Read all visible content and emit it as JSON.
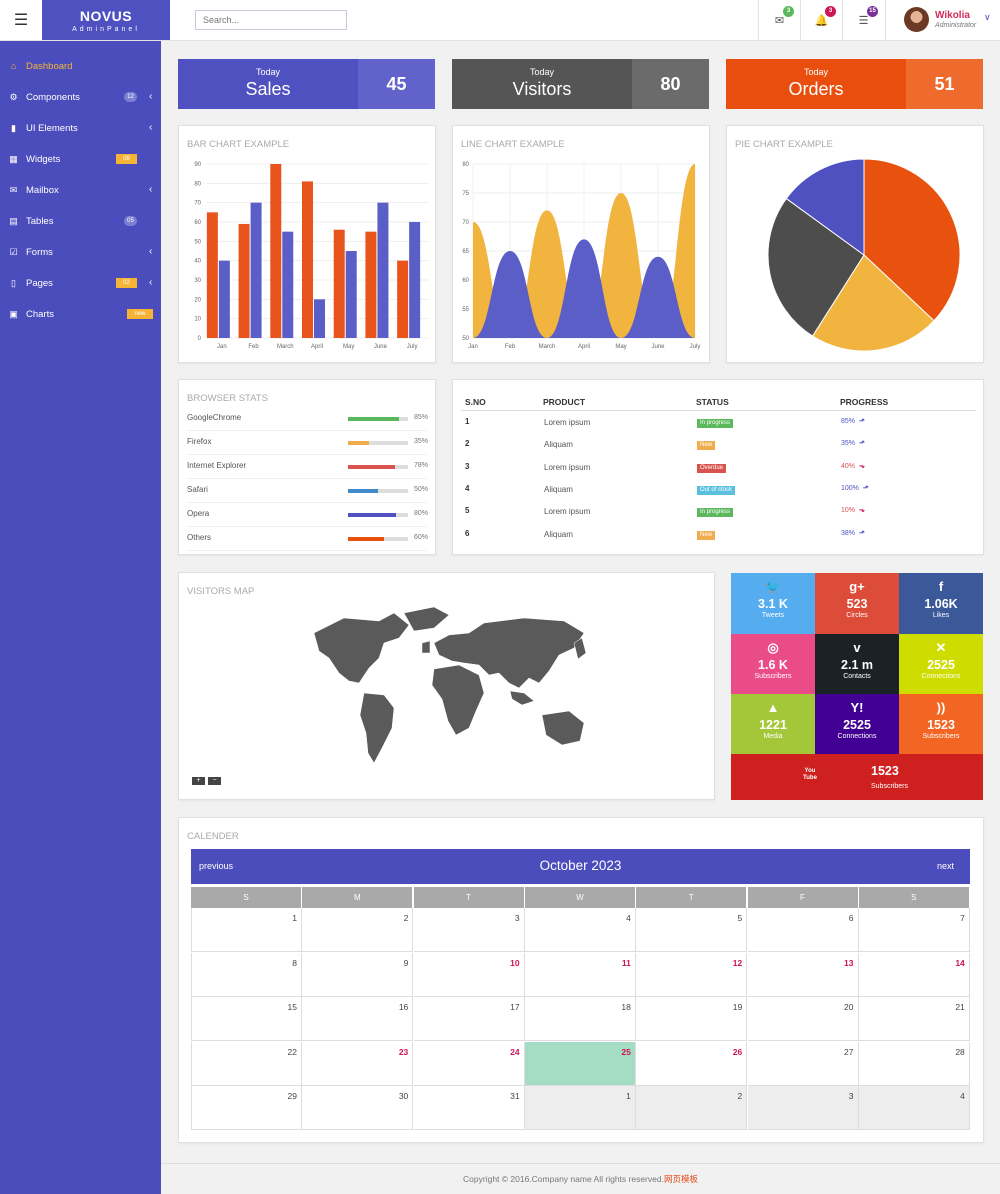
{
  "app": {
    "brand": "NOVUS",
    "brand_sub": "AdminPanel"
  },
  "header": {
    "search_placeholder": "Search...",
    "mail_badge": "3",
    "bell_badge": "3",
    "tasks_badge": "15",
    "user_name": "Wikolia",
    "user_role": "Administrator"
  },
  "sidebar": {
    "items": [
      {
        "label": "Dashboard",
        "icon": "home-icon",
        "active": true
      },
      {
        "label": "Components",
        "icon": "cogs-icon",
        "badge": "12",
        "arrow": true
      },
      {
        "label": "UI Elements",
        "icon": "book-icon",
        "arrow": true
      },
      {
        "label": "Widgets",
        "icon": "grid-icon",
        "badge": "08"
      },
      {
        "label": "Mailbox",
        "icon": "envelope-icon",
        "arrow": true
      },
      {
        "label": "Tables",
        "icon": "table-icon",
        "badge": "05"
      },
      {
        "label": "Forms",
        "icon": "check-square-icon",
        "arrow": true
      },
      {
        "label": "Pages",
        "icon": "file-icon",
        "badge": "02",
        "arrow": true
      },
      {
        "label": "Charts",
        "icon": "picture-icon",
        "badge": "new"
      }
    ]
  },
  "stats": [
    {
      "small": "Today",
      "big": "Sales",
      "value": "45",
      "color": "#4f51c0",
      "color2": "#6163cb"
    },
    {
      "small": "Today",
      "big": "Visitors",
      "value": "80",
      "color": "#555555",
      "color2": "#6b6b6b"
    },
    {
      "small": "Today",
      "big": "Orders",
      "value": "51",
      "color": "#e94e0f",
      "color2": "#ef6a2d"
    }
  ],
  "bar_title": "BAR CHART EXAMPLE",
  "line_title": "LINE CHART EXAMPLE",
  "pie_title": "PIE CHART EXAMPLE",
  "chart_data": [
    {
      "type": "bar",
      "categories": [
        "Jan",
        "Feb",
        "March",
        "April",
        "May",
        "June",
        "July"
      ],
      "series": [
        {
          "values": [
            65,
            59,
            90,
            81,
            56,
            55,
            40
          ],
          "color": "#e9531c"
        },
        {
          "values": [
            40,
            70,
            55,
            20,
            45,
            70,
            60
          ],
          "color": "#5b5ec7"
        }
      ],
      "ylim": [
        0,
        90
      ],
      "yticks": [
        0,
        10,
        20,
        30,
        40,
        50,
        60,
        70,
        80,
        90
      ],
      "grid": true
    },
    {
      "type": "area",
      "categories": [
        "Jan",
        "Feb",
        "March",
        "April",
        "May",
        "June",
        "July"
      ],
      "series": [
        {
          "values": [
            70,
            50,
            72,
            50,
            75,
            50,
            80
          ],
          "color": "#f0b43f"
        },
        {
          "values": [
            50,
            65,
            50,
            67,
            50,
            64,
            50
          ],
          "color": "#5b5ec7"
        }
      ],
      "ylim": [
        50,
        80
      ],
      "yticks": [
        50,
        55,
        60,
        65,
        70,
        75,
        80
      ],
      "grid": true
    },
    {
      "type": "pie",
      "slices": [
        {
          "value": 37,
          "color": "#e9510e"
        },
        {
          "value": 22,
          "color": "#f0b43f"
        },
        {
          "value": 26,
          "color": "#4d4d4d"
        },
        {
          "value": 15,
          "color": "#4f51c0"
        }
      ]
    }
  ],
  "browser_stats": {
    "title": "BROWSER STATS",
    "rows": [
      {
        "name": "GoogleChrome",
        "pct": "85%",
        "value": 85,
        "color": "#5cb85c"
      },
      {
        "name": "Firefox",
        "pct": "35%",
        "value": 35,
        "color": "#f0ad4e"
      },
      {
        "name": "Internet Explorer",
        "pct": "78%",
        "value": 78,
        "color": "#d9534f"
      },
      {
        "name": "Safari",
        "pct": "50%",
        "value": 50,
        "color": "#428bca"
      },
      {
        "name": "Opera",
        "pct": "80%",
        "value": 80,
        "color": "#4f51c0"
      },
      {
        "name": "Others",
        "pct": "60%",
        "value": 60,
        "color": "#e9510e"
      }
    ]
  },
  "table": {
    "headers": [
      "S.NO",
      "PRODUCT",
      "STATUS",
      "PROGRESS"
    ],
    "rows": [
      {
        "no": "1",
        "product": "Lorem ipsum",
        "status": "In progress",
        "scolor": "#5cb85c",
        "progress": "85%",
        "pcolor": "#4f51c0",
        "up": true
      },
      {
        "no": "2",
        "product": "Aliquam",
        "status": "New",
        "scolor": "#f0ad4e",
        "progress": "35%",
        "pcolor": "#4f51c0",
        "up": true
      },
      {
        "no": "3",
        "product": "Lorem ipsum",
        "status": "Overdue",
        "scolor": "#d9534f",
        "progress": "40%",
        "pcolor": "#d9534f",
        "up": false
      },
      {
        "no": "4",
        "product": "Aliquam",
        "status": "Out of stock",
        "scolor": "#5bc0de",
        "progress": "100%",
        "pcolor": "#4f51c0",
        "up": true
      },
      {
        "no": "5",
        "product": "Lorem ipsum",
        "status": "In progress",
        "scolor": "#5cb85c",
        "progress": "10%",
        "pcolor": "#d9534f",
        "up": false
      },
      {
        "no": "6",
        "product": "Aliquam",
        "status": "New",
        "scolor": "#f0ad4e",
        "progress": "38%",
        "pcolor": "#4f51c0",
        "up": true
      }
    ]
  },
  "map": {
    "title": "VISITORS MAP",
    "zoom_in": "+",
    "zoom_out": "−"
  },
  "social": [
    {
      "icon": "twitter-icon",
      "glyph": "🐦",
      "value": "3.1 K",
      "label": "Tweets",
      "color": "#55acee"
    },
    {
      "icon": "google-plus-icon",
      "glyph": "g+",
      "value": "523",
      "label": "Circles",
      "color": "#dd4b39"
    },
    {
      "icon": "facebook-icon",
      "glyph": "f",
      "value": "1.06K",
      "label": "Likes",
      "color": "#3b5998"
    },
    {
      "icon": "dribbble-icon",
      "glyph": "◎",
      "value": "1.6 K",
      "label": "Subscribers",
      "color": "#ea4c89"
    },
    {
      "icon": "vimeo-icon",
      "glyph": "v",
      "value": "2.1 m",
      "label": "Contacts",
      "color": "#1b2226"
    },
    {
      "icon": "xing-icon",
      "glyph": "✕",
      "value": "2525",
      "label": "Connections",
      "color": "#cfdc00"
    },
    {
      "icon": "android-icon",
      "glyph": "▲",
      "value": "1221",
      "label": "Media",
      "color": "#a4c639"
    },
    {
      "icon": "yahoo-icon",
      "glyph": "Y!",
      "value": "2525",
      "label": "Connections",
      "color": "#410093"
    },
    {
      "icon": "rss-icon",
      "glyph": "))",
      "value": "1523",
      "label": "Subscribers",
      "color": "#f26522"
    },
    {
      "icon": "youtube-icon",
      "glyph": "You Tube",
      "value": "1523",
      "label": "Subscribers",
      "color": "#cd201f"
    }
  ],
  "calendar": {
    "title": "CALENDER",
    "prev": "previous",
    "next": "next",
    "month": "October 2023",
    "days": [
      "S",
      "M",
      "T",
      "W",
      "T",
      "F",
      "S"
    ],
    "weeks": [
      [
        "1",
        "2",
        "3",
        "4",
        "5",
        "6",
        "7"
      ],
      [
        "8",
        "9",
        "10",
        "11",
        "12",
        "13",
        "14"
      ],
      [
        "15",
        "16",
        "17",
        "18",
        "19",
        "20",
        "21"
      ],
      [
        "22",
        "23",
        "24",
        "25",
        "26",
        "27",
        "28"
      ],
      [
        "29",
        "30",
        "31",
        "1",
        "2",
        "3",
        "4"
      ]
    ],
    "highlight": [
      "10",
      "11",
      "12",
      "13",
      "14",
      "23",
      "24",
      "25",
      "26"
    ],
    "today": "25"
  },
  "footer": {
    "text": "Copyright © 2016.Company name All rights reserved.",
    "link": "网页模板"
  }
}
